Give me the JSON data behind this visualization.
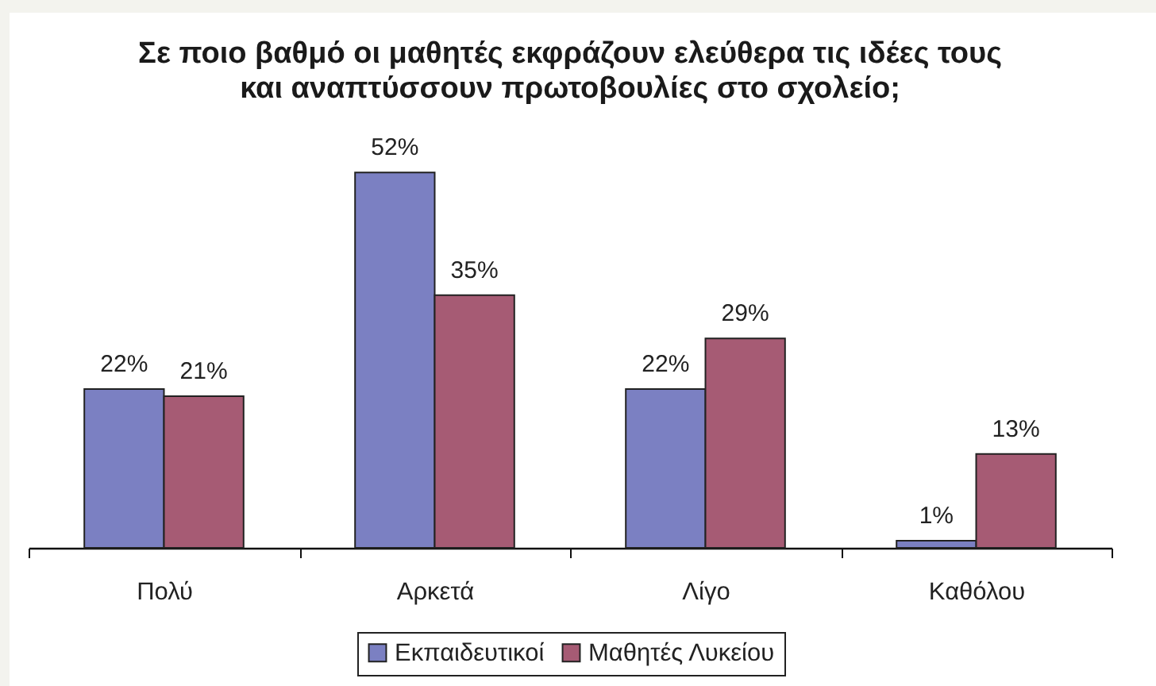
{
  "chart_data": {
    "type": "bar",
    "title": "Σε ποιο  βαθμό οι μαθητές εκφράζουν ελεύθερα τις ιδέες τους\nκαι αναπτύσσουν πρωτοβουλίες στο σχολείο;",
    "categories": [
      "Πολύ",
      "Αρκετά",
      "Λίγο",
      "Καθόλου"
    ],
    "series": [
      {
        "name": "Εκπαιδευτικοί",
        "color": "#7b80c2",
        "values": [
          22,
          52,
          22,
          1
        ],
        "value_labels": [
          "22%",
          "52%",
          "22%",
          "1%"
        ]
      },
      {
        "name": "Μαθητές Λυκείου",
        "color": "#a65b74",
        "values": [
          21,
          35,
          29,
          13
        ],
        "value_labels": [
          "21%",
          "35%",
          "29%",
          "13%"
        ]
      }
    ],
    "legend": "bottom",
    "tick_labels": "x"
  }
}
